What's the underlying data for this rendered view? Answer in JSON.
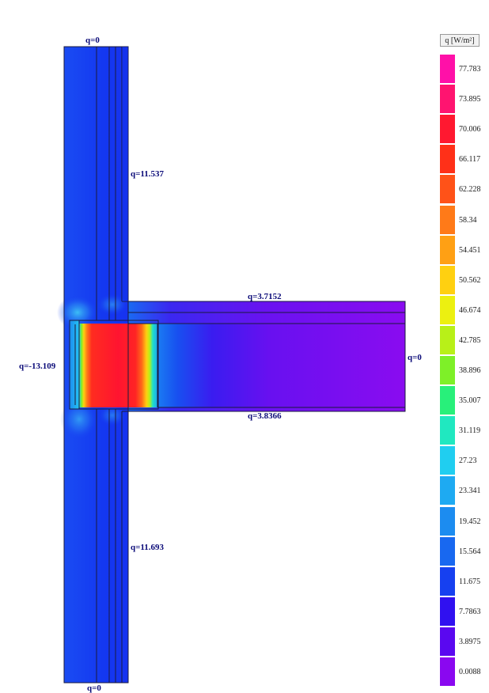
{
  "legend": {
    "title": "q [W/m²]",
    "entries": [
      {
        "value": "77.783",
        "color": "#ff10a8"
      },
      {
        "value": "73.895",
        "color": "#ff1470"
      },
      {
        "value": "70.006",
        "color": "#ff1830"
      },
      {
        "value": "66.117",
        "color": "#ff3018"
      },
      {
        "value": "62.228",
        "color": "#ff5218"
      },
      {
        "value": "58.34",
        "color": "#ff7a18"
      },
      {
        "value": "54.451",
        "color": "#ffa014"
      },
      {
        "value": "50.562",
        "color": "#ffd010"
      },
      {
        "value": "46.674",
        "color": "#ecf010"
      },
      {
        "value": "42.785",
        "color": "#b8f018"
      },
      {
        "value": "38.896",
        "color": "#7ef028"
      },
      {
        "value": "35.007",
        "color": "#28f07a"
      },
      {
        "value": "31.119",
        "color": "#20e8c0"
      },
      {
        "value": "27.23",
        "color": "#20cef0"
      },
      {
        "value": "23.341",
        "color": "#1eaaf2"
      },
      {
        "value": "19.452",
        "color": "#1c8cf0"
      },
      {
        "value": "15.564",
        "color": "#1868f0"
      },
      {
        "value": "11.675",
        "color": "#1640f0"
      },
      {
        "value": "7.7863",
        "color": "#3010f0"
      },
      {
        "value": "3.8975",
        "color": "#5a08f0"
      },
      {
        "value": "0.0088",
        "color": "#8a08f0"
      }
    ]
  },
  "boundary_labels": {
    "top": "q=0",
    "wall_upper_right": "q=11.537",
    "slab_top": "q=3.7152",
    "left": "q=-13.109",
    "slab_end": "q=0",
    "slab_bottom": "q=3.8366",
    "wall_lower_right": "q=11.693",
    "bottom": "q=0"
  },
  "colors": {
    "wall_base": "#1438f0",
    "slab_base": "#8410f0",
    "hot_core": "#ff1e30",
    "outline": "#1a1a3c"
  }
}
